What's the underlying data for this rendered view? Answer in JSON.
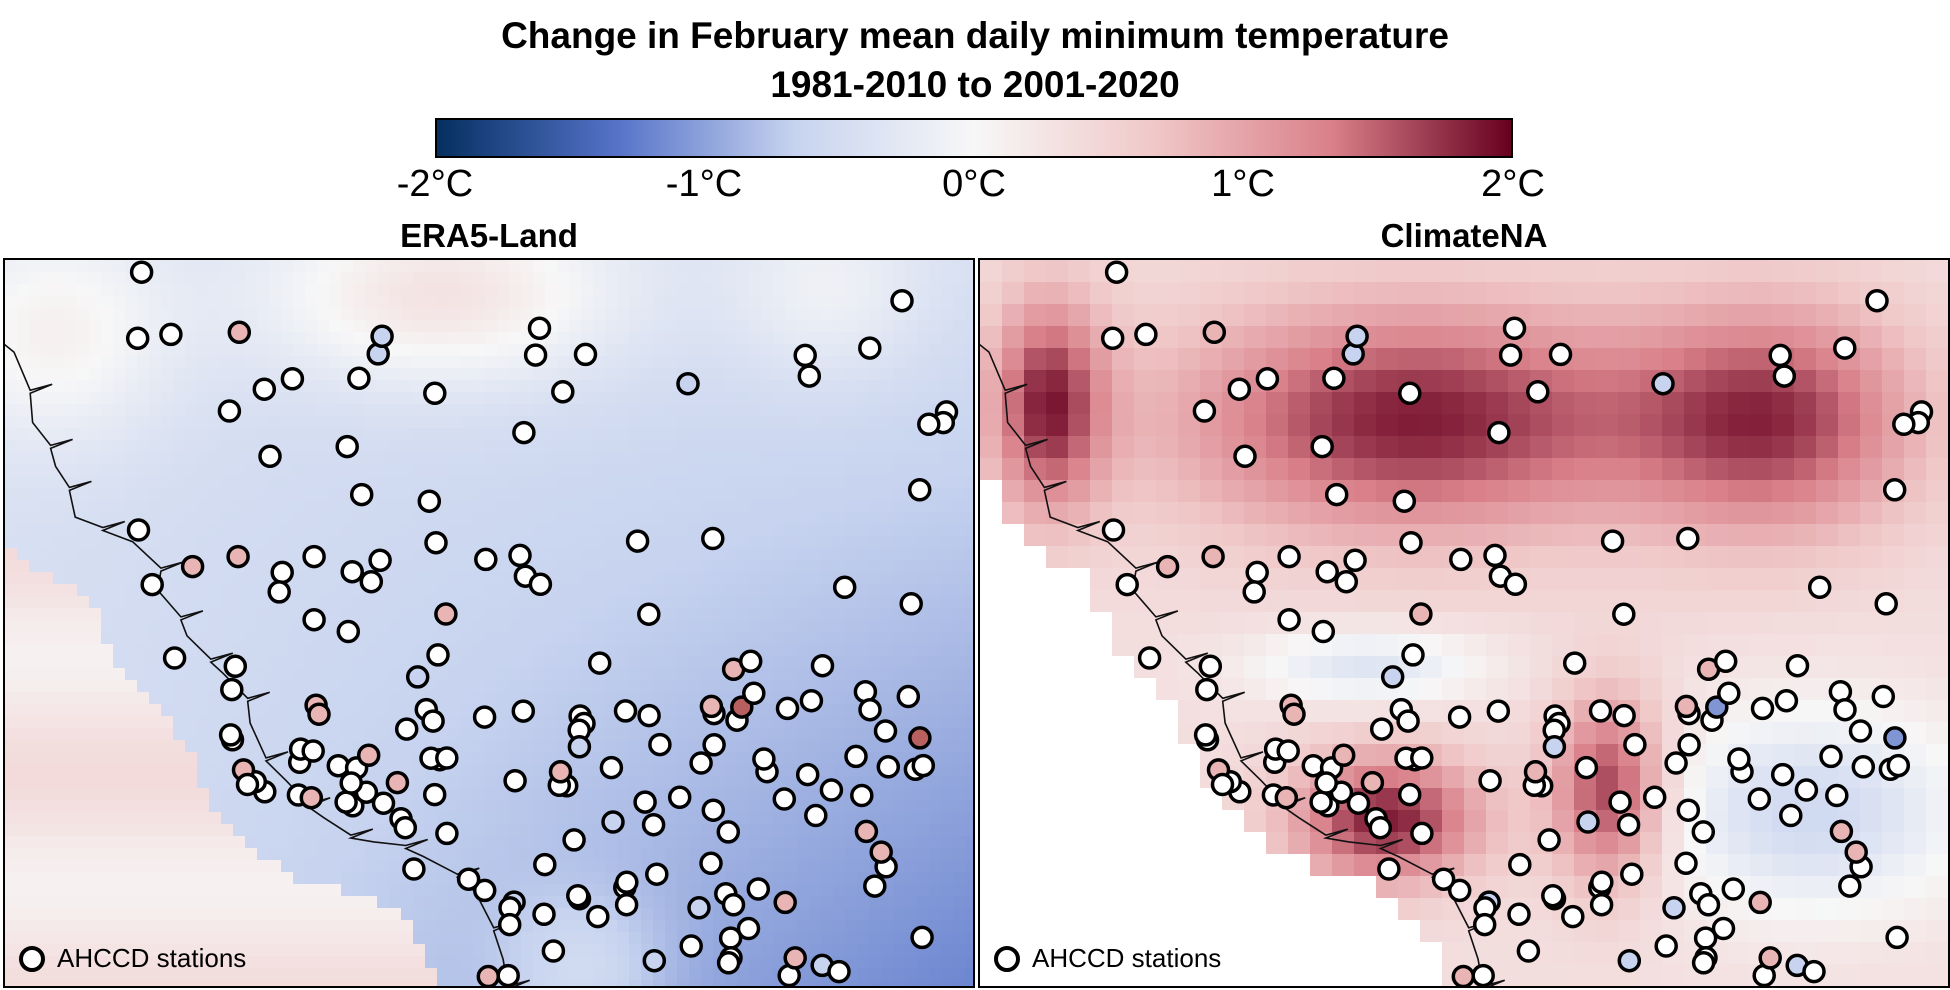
{
  "title_line1": "Change in February mean daily minimum temperature",
  "title_line2": "1981-2010 to 2001-2020",
  "colorbar": {
    "ticks": [
      "-2°C",
      "-1°C",
      "0°C",
      "1°C",
      "2°C"
    ],
    "range": [
      -2,
      2
    ],
    "colors": [
      "#053061",
      "#5572c8",
      "#c7d3ef",
      "#f7f7f7",
      "#f0c8c8",
      "#d9808a",
      "#67001f"
    ]
  },
  "panels": [
    {
      "id": "left",
      "title": "ERA5-Land",
      "legend_label": "AHCCD stations"
    },
    {
      "id": "right",
      "title": "ClimateNA",
      "legend_label": "AHCCD stations"
    }
  ]
}
